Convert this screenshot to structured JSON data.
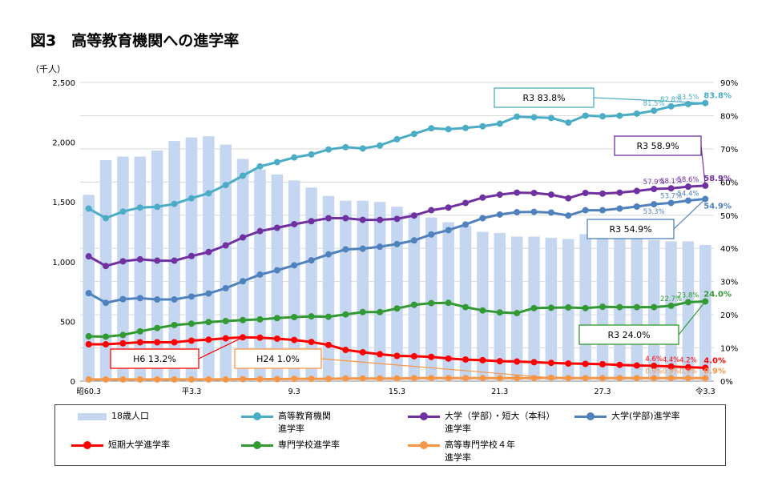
{
  "page": {
    "title": "図3　高等教育機関への進学率",
    "unit_label": "（千人）"
  },
  "colors": {
    "population": "#c5d7f0",
    "higher_edu": "#4bacc6",
    "univ_junior": "#7030a0",
    "univ": "#4f81bd",
    "junior": "#ff0000",
    "vocational": "#339933",
    "kosen": "#f79646"
  },
  "chart_data": {
    "type": "bar",
    "x": [
      "昭60.3",
      "昭61.3",
      "昭62.3",
      "昭63.3",
      "平1.3",
      "平2.3",
      "平3.3",
      "平4.3",
      "平5.3",
      "平6.3",
      "平7.3",
      "平8.3",
      "平9.3",
      "平10.3",
      "平11.3",
      "平12.3",
      "平13.3",
      "平14.3",
      "平15.3",
      "平16.3",
      "平17.3",
      "平18.3",
      "平19.3",
      "平20.3",
      "平21.3",
      "平22.3",
      "平23.3",
      "平24.3",
      "平25.3",
      "平26.3",
      "平27.3",
      "平28.3",
      "平29.3",
      "平30.3",
      "平31.3",
      "令2.3",
      "令3.3"
    ],
    "x_tick_labels": [
      "昭60.3",
      "",
      "",
      "",
      "",
      "",
      "平3.3",
      "",
      "",
      "",
      "",
      "",
      "9.3",
      "",
      "",
      "",
      "",
      "",
      "15.3",
      "",
      "",
      "",
      "",
      "",
      "21.3",
      "",
      "",
      "",
      "",
      "",
      "27.3",
      "",
      "",
      "",
      "",
      "",
      "令3.3"
    ],
    "y_left": {
      "min": 0,
      "max": 2500,
      "ticks": [
        "0",
        "500",
        "1,000",
        "1,500",
        "2,000",
        "2,500"
      ]
    },
    "y_right": {
      "min": 0,
      "max": 90,
      "ticks": [
        "0%",
        "10%",
        "20%",
        "30%",
        "40%",
        "50%",
        "60%",
        "70%",
        "80%",
        "90%"
      ]
    },
    "grid": true,
    "legend_position": "bottom",
    "series": [
      {
        "key": "population",
        "name": "18歳人口",
        "type": "bar",
        "axis": "left",
        "values": [
          1560,
          1850,
          1880,
          1880,
          1930,
          2010,
          2040,
          2050,
          1980,
          1860,
          1770,
          1730,
          1680,
          1620,
          1550,
          1510,
          1510,
          1500,
          1460,
          1410,
          1370,
          1330,
          1300,
          1250,
          1240,
          1210,
          1210,
          1200,
          1190,
          1230,
          1200,
          1200,
          1200,
          1180,
          1170,
          1170,
          1140
        ]
      },
      {
        "key": "higher_edu",
        "name": "高等教育機関\n進学率",
        "type": "line",
        "axis": "right",
        "values": [
          52.0,
          49.1,
          51.1,
          52.3,
          52.5,
          53.4,
          55.1,
          56.6,
          59.1,
          61.9,
          64.7,
          66.0,
          67.4,
          68.3,
          69.8,
          70.5,
          70.1,
          71.0,
          72.9,
          74.5,
          76.2,
          75.9,
          76.3,
          76.8,
          77.6,
          79.7,
          79.5,
          79.3,
          77.9,
          80.0,
          79.8,
          80.0,
          80.6,
          81.5,
          82.8,
          83.5,
          83.8
        ]
      },
      {
        "key": "univ_junior",
        "name": "大学（学部）・短大（本科）\n進学率",
        "type": "line",
        "axis": "right",
        "values": [
          37.6,
          34.7,
          36.1,
          36.7,
          36.3,
          36.3,
          37.7,
          38.9,
          40.9,
          43.3,
          45.2,
          46.2,
          47.3,
          48.2,
          49.1,
          49.1,
          48.6,
          48.6,
          48.9,
          49.9,
          51.5,
          52.3,
          53.7,
          55.3,
          56.2,
          56.8,
          56.7,
          56.2,
          55.1,
          56.7,
          56.5,
          56.8,
          57.3,
          57.9,
          58.1,
          58.6,
          58.9
        ]
      },
      {
        "key": "univ",
        "name": "大学(学部)進学率",
        "type": "line",
        "axis": "right",
        "values": [
          26.5,
          23.6,
          24.7,
          25.0,
          24.6,
          24.6,
          25.5,
          26.4,
          28.0,
          30.1,
          32.1,
          33.4,
          34.9,
          36.4,
          38.2,
          39.7,
          39.9,
          40.5,
          41.3,
          42.4,
          44.2,
          45.5,
          47.2,
          49.1,
          50.2,
          50.9,
          51.0,
          50.8,
          49.9,
          51.5,
          51.5,
          52.0,
          52.6,
          53.3,
          53.7,
          54.4,
          54.9
        ]
      },
      {
        "key": "junior",
        "name": "短期大学進学率",
        "type": "line",
        "axis": "right",
        "values": [
          11.1,
          11.1,
          11.4,
          11.7,
          11.7,
          11.7,
          12.2,
          12.5,
          12.9,
          13.2,
          13.1,
          12.8,
          12.4,
          11.8,
          10.9,
          9.4,
          8.7,
          8.1,
          7.6,
          7.5,
          7.3,
          6.8,
          6.5,
          6.3,
          6.0,
          5.9,
          5.7,
          5.5,
          5.3,
          5.2,
          5.1,
          4.9,
          4.7,
          4.6,
          4.4,
          4.2,
          4.0
        ]
      },
      {
        "key": "vocational",
        "name": "専門学校進学率",
        "type": "line",
        "axis": "right",
        "values": [
          13.5,
          13.4,
          13.9,
          15.0,
          16.0,
          16.9,
          17.3,
          17.8,
          18.1,
          18.4,
          18.6,
          19.0,
          19.3,
          19.5,
          19.4,
          20.1,
          20.8,
          20.8,
          21.9,
          23.0,
          23.5,
          23.6,
          22.3,
          21.3,
          20.7,
          20.5,
          22.0,
          22.1,
          22.2,
          22.0,
          22.4,
          22.3,
          22.3,
          22.3,
          22.7,
          23.8,
          24.0
        ]
      },
      {
        "key": "kosen",
        "name": "高等専門学校４年\n進学率",
        "type": "line",
        "axis": "right",
        "values": [
          0.5,
          0.5,
          0.5,
          0.5,
          0.5,
          0.5,
          0.5,
          0.5,
          0.5,
          0.6,
          0.6,
          0.6,
          0.7,
          0.7,
          0.7,
          0.8,
          0.8,
          0.8,
          0.8,
          0.9,
          0.9,
          0.9,
          0.9,
          0.9,
          0.9,
          0.9,
          0.9,
          1.0,
          0.9,
          0.9,
          0.9,
          0.9,
          0.9,
          0.9,
          0.9,
          0.9,
          0.9
        ]
      }
    ],
    "point_labels": [
      {
        "series": "higher_edu",
        "index": 33,
        "text": "81.5%"
      },
      {
        "series": "higher_edu",
        "index": 34,
        "text": "82.8%"
      },
      {
        "series": "higher_edu",
        "index": 35,
        "text": "83.5%"
      },
      {
        "series": "higher_edu",
        "index": 36,
        "text": "83.8%"
      },
      {
        "series": "univ_junior",
        "index": 33,
        "text": "57.9%"
      },
      {
        "series": "univ_junior",
        "index": 34,
        "text": "58.1%"
      },
      {
        "series": "univ_junior",
        "index": 35,
        "text": "58.6%"
      },
      {
        "series": "univ_junior",
        "index": 36,
        "text": "58.9%"
      },
      {
        "series": "univ",
        "index": 33,
        "text": "53.3%"
      },
      {
        "series": "univ",
        "index": 34,
        "text": "53.7%"
      },
      {
        "series": "univ",
        "index": 35,
        "text": "54.4%"
      },
      {
        "series": "univ",
        "index": 36,
        "text": "54.9%"
      },
      {
        "series": "vocational",
        "index": 34,
        "text": "22.7%"
      },
      {
        "series": "vocational",
        "index": 35,
        "text": "23.8%"
      },
      {
        "series": "vocational",
        "index": 36,
        "text": "24.0%"
      },
      {
        "series": "junior",
        "index": 33,
        "text": "4.6%"
      },
      {
        "series": "junior",
        "index": 34,
        "text": "4.4%"
      },
      {
        "series": "junior",
        "index": 35,
        "text": "4.2%"
      },
      {
        "series": "junior",
        "index": 36,
        "text": "4.0%"
      },
      {
        "series": "kosen",
        "index": 33,
        "text": "0.9%"
      },
      {
        "series": "kosen",
        "index": 34,
        "text": "0.9%"
      },
      {
        "series": "kosen",
        "index": 35,
        "text": "0.9%"
      },
      {
        "series": "kosen",
        "index": 36,
        "text": "0.9%"
      }
    ],
    "callouts": [
      {
        "series": "higher_edu",
        "index": 36,
        "text": "R3  83.8%"
      },
      {
        "series": "univ_junior",
        "index": 36,
        "text": "R3  58.9%"
      },
      {
        "series": "univ",
        "index": 36,
        "text": "R3  54.9%"
      },
      {
        "series": "vocational",
        "index": 36,
        "text": "R3 24.0%"
      },
      {
        "series": "junior",
        "index": 9,
        "text": "H6 13.2%"
      },
      {
        "series": "kosen",
        "index": 27,
        "text": "H24 1.0%"
      }
    ]
  }
}
